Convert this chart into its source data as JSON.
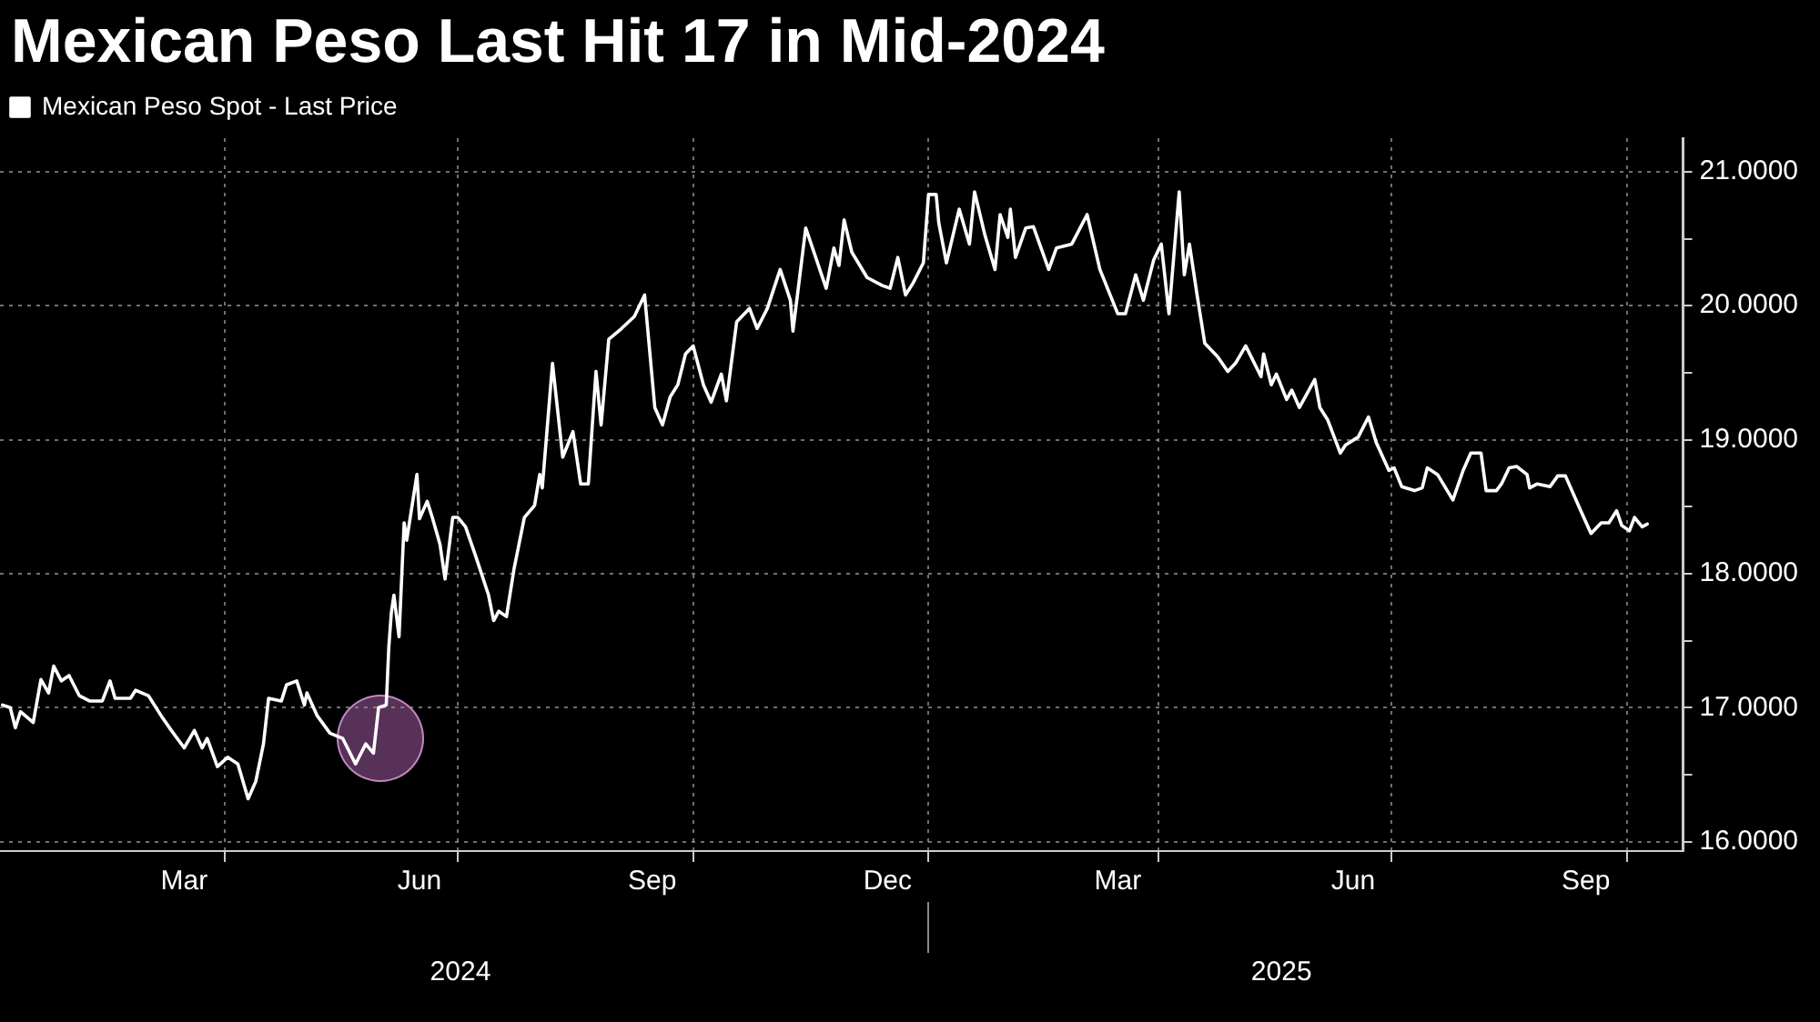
{
  "chart_data": {
    "type": "line",
    "title": "Mexican Peso Last Hit 17 in Mid-2024",
    "x": [
      "2024-01-05",
      "2024-01-08",
      "2024-01-10",
      "2024-01-12",
      "2024-01-17",
      "2024-01-20",
      "2024-01-23",
      "2024-01-25",
      "2024-01-28",
      "2024-01-31",
      "2024-02-04",
      "2024-02-08",
      "2024-02-13",
      "2024-02-16",
      "2024-02-18",
      "2024-02-24",
      "2024-02-26",
      "2024-03-02",
      "2024-03-07",
      "2024-03-11",
      "2024-03-16",
      "2024-03-20",
      "2024-03-23",
      "2024-03-25",
      "2024-03-29",
      "2024-04-02",
      "2024-04-06",
      "2024-04-10",
      "2024-04-13",
      "2024-04-16",
      "2024-04-18",
      "2024-04-23",
      "2024-04-25",
      "2024-04-29",
      "2024-05-02",
      "2024-05-03",
      "2024-05-07",
      "2024-05-12",
      "2024-05-17",
      "2024-05-22",
      "2024-05-26",
      "2024-05-29",
      "2024-05-31",
      "2024-06-03",
      "2024-06-04",
      "2024-06-05",
      "2024-06-06",
      "2024-06-08",
      "2024-06-10",
      "2024-06-11",
      "2024-06-15",
      "2024-06-16",
      "2024-06-19",
      "2024-06-21",
      "2024-06-24",
      "2024-06-26",
      "2024-06-29",
      "2024-07-01",
      "2024-07-04",
      "2024-07-08",
      "2024-07-13",
      "2024-07-15",
      "2024-07-17",
      "2024-07-20",
      "2024-07-23",
      "2024-07-27",
      "2024-07-31",
      "2024-08-02",
      "2024-08-03",
      "2024-08-07",
      "2024-08-11",
      "2024-08-15",
      "2024-08-18",
      "2024-08-21",
      "2024-08-24",
      "2024-08-26",
      "2024-08-29",
      "2024-09-03",
      "2024-09-08",
      "2024-09-12",
      "2024-09-16",
      "2024-09-19",
      "2024-09-22",
      "2024-09-25",
      "2024-09-28",
      "2024-10-01",
      "2024-10-05",
      "2024-10-08",
      "2024-10-12",
      "2024-10-14",
      "2024-10-18",
      "2024-10-23",
      "2024-10-26",
      "2024-10-30",
      "2024-11-04",
      "2024-11-08",
      "2024-11-09",
      "2024-11-14",
      "2024-11-22",
      "2024-11-25",
      "2024-11-27",
      "2024-11-29",
      "2024-12-02",
      "2024-12-08",
      "2024-12-14",
      "2024-12-17",
      "2024-12-20",
      "2024-12-23",
      "2024-12-26",
      "2024-12-30",
      "2025-01-01",
      "2025-01-04",
      "2025-01-05",
      "2025-01-08",
      "2025-01-13",
      "2025-01-17",
      "2025-01-19",
      "2025-01-23",
      "2025-01-27",
      "2025-01-29",
      "2025-02-01",
      "2025-02-02",
      "2025-02-04",
      "2025-02-08",
      "2025-02-11",
      "2025-02-17",
      "2025-02-20",
      "2025-02-26",
      "2025-03-04",
      "2025-03-09",
      "2025-03-16",
      "2025-03-19",
      "2025-03-23",
      "2025-03-26",
      "2025-03-30",
      "2025-04-02",
      "2025-04-05",
      "2025-04-09",
      "2025-04-11",
      "2025-04-13",
      "2025-04-16",
      "2025-04-19",
      "2025-04-24",
      "2025-04-28",
      "2025-05-01",
      "2025-05-05",
      "2025-05-11",
      "2025-05-12",
      "2025-05-15",
      "2025-05-17",
      "2025-05-21",
      "2025-05-23",
      "2025-05-26",
      "2025-05-30",
      "2025-06-01",
      "2025-06-03",
      "2025-06-06",
      "2025-06-11",
      "2025-06-13",
      "2025-06-18",
      "2025-06-22",
      "2025-06-25",
      "2025-06-30",
      "2025-07-02",
      "2025-07-05",
      "2025-07-10",
      "2025-07-13",
      "2025-07-15",
      "2025-07-19",
      "2025-07-25",
      "2025-07-29",
      "2025-08-01",
      "2025-08-05",
      "2025-08-07",
      "2025-08-11",
      "2025-08-13",
      "2025-08-16",
      "2025-08-19",
      "2025-08-23",
      "2025-08-24",
      "2025-08-27",
      "2025-09-01",
      "2025-09-04",
      "2025-09-07",
      "2025-09-13",
      "2025-09-17",
      "2025-09-21",
      "2025-09-24",
      "2025-09-27",
      "2025-09-29",
      "2025-10-02",
      "2025-10-04",
      "2025-10-07",
      "2025-10-09"
    ],
    "series": [
      {
        "name": "Mexican Peso Spot - Last Price",
        "color": "#ffffff",
        "values": [
          17.02,
          17.0,
          16.85,
          16.97,
          16.89,
          17.21,
          17.11,
          17.31,
          17.2,
          17.24,
          17.09,
          17.05,
          17.05,
          17.2,
          17.07,
          17.07,
          17.13,
          17.09,
          16.94,
          16.83,
          16.7,
          16.83,
          16.7,
          16.77,
          16.56,
          16.63,
          16.58,
          16.32,
          16.45,
          16.73,
          17.07,
          17.05,
          17.17,
          17.2,
          17.02,
          17.11,
          16.94,
          16.81,
          16.77,
          16.58,
          16.73,
          16.66,
          17.0,
          17.02,
          17.45,
          17.71,
          17.84,
          17.53,
          18.38,
          18.25,
          18.74,
          18.41,
          18.54,
          18.42,
          18.22,
          17.96,
          18.42,
          18.42,
          18.35,
          18.13,
          17.84,
          17.65,
          17.72,
          17.68,
          18.04,
          18.42,
          18.51,
          18.74,
          18.64,
          19.57,
          18.87,
          19.06,
          18.67,
          18.67,
          19.51,
          19.11,
          19.75,
          19.83,
          19.92,
          20.08,
          19.24,
          19.11,
          19.32,
          19.41,
          19.64,
          19.7,
          19.41,
          19.28,
          19.49,
          19.29,
          19.88,
          19.98,
          19.83,
          19.98,
          20.27,
          20.04,
          19.81,
          20.58,
          20.13,
          20.43,
          20.3,
          20.64,
          20.4,
          20.21,
          20.15,
          20.13,
          20.36,
          20.08,
          20.17,
          20.32,
          20.83,
          20.83,
          20.62,
          20.32,
          20.72,
          20.46,
          20.85,
          20.53,
          20.27,
          20.68,
          20.51,
          20.72,
          20.36,
          20.58,
          20.59,
          20.27,
          20.43,
          20.46,
          20.68,
          20.27,
          19.94,
          19.94,
          20.23,
          20.04,
          20.34,
          20.46,
          19.94,
          20.85,
          20.23,
          20.46,
          20.08,
          19.72,
          19.62,
          19.51,
          19.57,
          19.7,
          19.47,
          19.64,
          19.41,
          19.49,
          19.3,
          19.37,
          19.24,
          19.38,
          19.45,
          19.24,
          19.15,
          18.9,
          18.96,
          19.02,
          19.17,
          18.98,
          18.77,
          18.79,
          18.65,
          18.62,
          18.64,
          18.79,
          18.74,
          18.55,
          18.77,
          18.9,
          18.9,
          18.62,
          18.62,
          18.67,
          18.79,
          18.8,
          18.74,
          18.64,
          18.67,
          18.65,
          18.73,
          18.73,
          18.47,
          18.3,
          18.38,
          18.38,
          18.47,
          18.36,
          18.32,
          18.42,
          18.35,
          18.37
        ]
      }
    ],
    "xlim": [
      "2024-01-04",
      "2025-10-23"
    ],
    "xticks": [
      {
        "value": "2024-03-16",
        "label": "Mar"
      },
      {
        "value": "2024-04-01",
        "label": null
      },
      {
        "value": "2024-06-16",
        "label": "Jun"
      },
      {
        "value": "2024-07-01",
        "label": null
      },
      {
        "value": "2024-09-15",
        "label": "Sep"
      },
      {
        "value": "2024-10-01",
        "label": null
      },
      {
        "value": "2024-12-16",
        "label": "Dec"
      },
      {
        "value": "2025-01-01",
        "label": null
      },
      {
        "value": "2025-03-16",
        "label": "Mar"
      },
      {
        "value": "2025-04-01",
        "label": null
      },
      {
        "value": "2025-06-16",
        "label": "Jun"
      },
      {
        "value": "2025-07-01",
        "label": null
      },
      {
        "value": "2025-09-15",
        "label": "Sep"
      },
      {
        "value": "2025-10-01",
        "label": null
      }
    ],
    "x2lim": [
      "2024-01-04",
      "2025-10-23"
    ],
    "x2ticks": [
      {
        "value": "2024-07-02",
        "label": "2024"
      },
      {
        "value": "2025-01-01",
        "label": null
      },
      {
        "value": "2025-05-19",
        "label": "2025"
      }
    ],
    "ylim": [
      15.93,
      21.25
    ],
    "yticks": [
      {
        "value": 16,
        "label": "16.0000"
      },
      {
        "value": 16.5,
        "label": null
      },
      {
        "value": 17,
        "label": "17.0000"
      },
      {
        "value": 17.5,
        "label": null
      },
      {
        "value": 18,
        "label": "18.0000"
      },
      {
        "value": 18.5,
        "label": null
      },
      {
        "value": 19,
        "label": "19.0000"
      },
      {
        "value": 19.5,
        "label": null
      },
      {
        "value": 20,
        "label": "20.0000"
      },
      {
        "value": 20.5,
        "label": null
      },
      {
        "value": 21,
        "label": "21.0000"
      }
    ],
    "grid": true,
    "legend": "top left"
  }
}
